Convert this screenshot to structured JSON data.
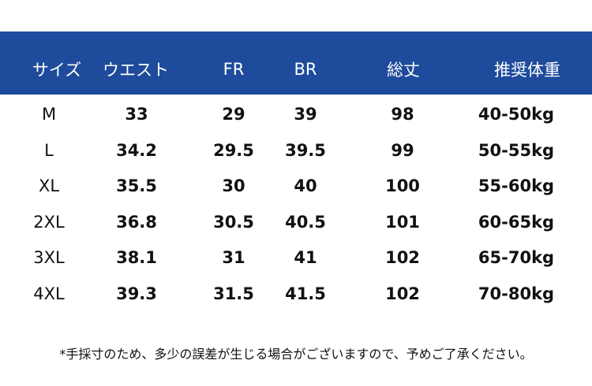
{
  "table": {
    "headers": [
      "サイズ",
      "ウエスト",
      "FR",
      "BR",
      "総丈",
      "推奨体重"
    ],
    "rows": [
      [
        "M",
        "33",
        "29",
        "39",
        "98",
        "40-50kg"
      ],
      [
        "L",
        "34.2",
        "29.5",
        "39.5",
        "99",
        "50-55kg"
      ],
      [
        "XL",
        "35.5",
        "30",
        "40",
        "100",
        "55-60kg"
      ],
      [
        "2XL",
        "36.8",
        "30.5",
        "40.5",
        "101",
        "60-65kg"
      ],
      [
        "3XL",
        "38.1",
        "31",
        "41",
        "102",
        "65-70kg"
      ],
      [
        "4XL",
        "39.3",
        "31.5",
        "41.5",
        "102",
        "70-80kg"
      ]
    ]
  },
  "note": "*手採寸のため、多少の誤差が生じる場合がございますので、予めご了承ください。",
  "colors": {
    "header_bg": "#1e4b9c",
    "header_text": "#ffffff"
  }
}
